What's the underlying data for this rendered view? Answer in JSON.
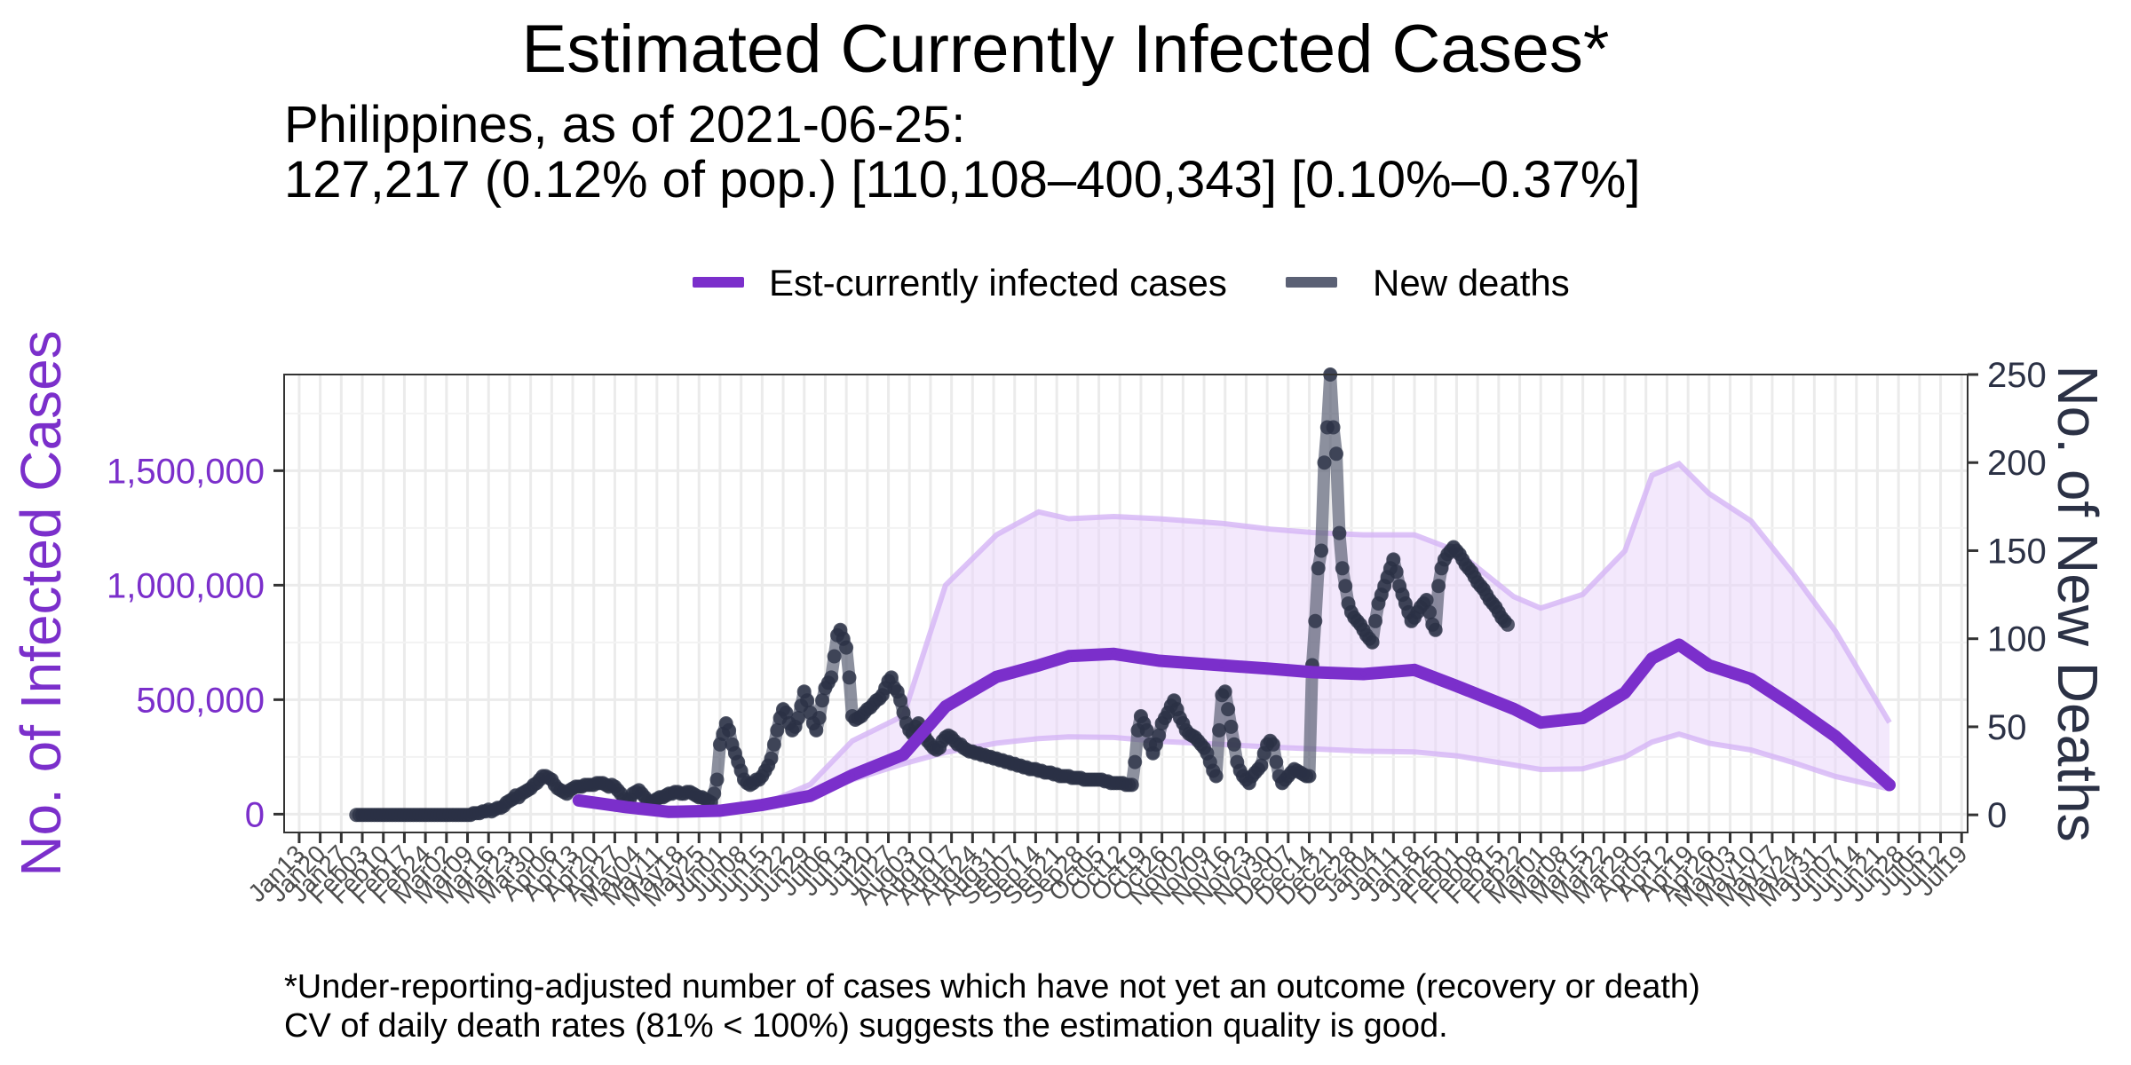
{
  "chart_data": {
    "type": "line",
    "title": "Estimated Currently Infected Cases*",
    "subtitle": [
      "Philippines, as of 2021-06-25:",
      "127,217 (0.12% of pop.)  [110,108–400,343]  [0.10%–0.37%]"
    ],
    "caption": [
      "*Under-reporting-adjusted number of cases which have not yet an outcome (recovery or death)",
      "CV of daily death rates (81% < 100%) suggests the estimation quality is good."
    ],
    "ylabel": "No. of Infected Cases",
    "y2label": "No. of New Deaths",
    "ylim": [
      -80000,
      1920000
    ],
    "y2lim": [
      -10,
      250
    ],
    "yticks": [
      0,
      500000,
      1000000,
      1500000
    ],
    "ytick_labels": [
      "0",
      "500,000",
      "1,000,000",
      "1,500,000"
    ],
    "y2ticks": [
      0,
      50,
      100,
      150,
      200,
      250
    ],
    "y2tick_labels": [
      "0",
      "50",
      "100",
      "150",
      "200",
      "250"
    ],
    "xlim": [
      "2020-01-08",
      "2021-07-21"
    ],
    "xtick_labels": [
      "Jan13",
      "Jan20",
      "Jan27",
      "Feb03",
      "Feb10",
      "Feb17",
      "Feb24",
      "Mar02",
      "Mar09",
      "Mar16",
      "Mar23",
      "Mar30",
      "Apr06",
      "Apr13",
      "Apr20",
      "Apr27",
      "May04",
      "May11",
      "May18",
      "May25",
      "Jun01",
      "Jun08",
      "Jun15",
      "Jun22",
      "Jun29",
      "Jul06",
      "Jul13",
      "Jul20",
      "Jul27",
      "Aug03",
      "Aug10",
      "Aug17",
      "Aug24",
      "Aug31",
      "Sep07",
      "Sep14",
      "Sep21",
      "Sep28",
      "Oct05",
      "Oct12",
      "Oct19",
      "Oct26",
      "Nov02",
      "Nov09",
      "Nov16",
      "Nov23",
      "Nov30",
      "Dec07",
      "Dec14",
      "Dec21",
      "Dec28",
      "Jan04",
      "Jan11",
      "Jan18",
      "Jan25",
      "Feb01",
      "Feb08",
      "Feb15",
      "Feb22",
      "Mar01",
      "Mar08",
      "Mar15",
      "Mar22",
      "Mar29",
      "Apr05",
      "Apr12",
      "Apr19",
      "Apr26",
      "May03",
      "May10",
      "May17",
      "May24",
      "May31",
      "Jun07",
      "Jun14",
      "Jun21",
      "Jun28",
      "Jul05",
      "Jul12",
      "Jul19"
    ],
    "legend_position": "top",
    "grid": true,
    "colors": {
      "infected": "#7B2FCB",
      "band": "#E9D5F9",
      "band_edge": "#D4B4F5",
      "deaths": "#5B6175",
      "deaths_points": "#2B3145",
      "axis_left": "#7B2FCB",
      "axis_right": "#2B3145"
    },
    "series": [
      {
        "name": "Est-currently infected cases",
        "axis": "left",
        "x": [
          "2020-04-15",
          "2020-05-01",
          "2020-05-15",
          "2020-06-01",
          "2020-06-15",
          "2020-07-01",
          "2020-07-15",
          "2020-08-01",
          "2020-08-15",
          "2020-09-01",
          "2020-09-15",
          "2020-09-25",
          "2020-10-10",
          "2020-10-25",
          "2020-11-15",
          "2020-12-01",
          "2020-12-15",
          "2021-01-01",
          "2021-01-18",
          "2021-02-01",
          "2021-02-20",
          "2021-03-01",
          "2021-03-15",
          "2021-03-29",
          "2021-04-07",
          "2021-04-16",
          "2021-04-26",
          "2021-05-10",
          "2021-05-24",
          "2021-06-07",
          "2021-06-25"
        ],
        "y": [
          60000,
          30000,
          10000,
          15000,
          40000,
          80000,
          170000,
          260000,
          470000,
          600000,
          650000,
          690000,
          700000,
          670000,
          650000,
          635000,
          620000,
          612000,
          630000,
          560000,
          460000,
          400000,
          420000,
          530000,
          680000,
          740000,
          650000,
          590000,
          470000,
          340000,
          127217
        ],
        "lower": [
          60000,
          30000,
          10000,
          15000,
          40000,
          80000,
          150000,
          220000,
          270000,
          310000,
          330000,
          338000,
          335000,
          318000,
          305000,
          293000,
          285000,
          275000,
          272000,
          255000,
          215000,
          195000,
          198000,
          250000,
          315000,
          350000,
          310000,
          280000,
          225000,
          165000,
          110108
        ],
        "upper": [
          60000,
          30000,
          10000,
          15000,
          40000,
          130000,
          320000,
          430000,
          1000000,
          1220000,
          1320000,
          1290000,
          1300000,
          1290000,
          1270000,
          1245000,
          1230000,
          1220000,
          1220000,
          1150000,
          950000,
          900000,
          960000,
          1150000,
          1480000,
          1530000,
          1400000,
          1280000,
          1050000,
          800000,
          400343
        ]
      },
      {
        "name": "New deaths",
        "axis": "right",
        "x_start": "2020-02-01",
        "values": [
          0,
          0,
          0,
          0,
          0,
          0,
          0,
          0,
          0,
          0,
          0,
          0,
          0,
          0,
          0,
          0,
          0,
          0,
          0,
          0,
          0,
          0,
          0,
          0,
          0,
          0,
          0,
          0,
          0,
          0,
          0,
          0,
          0,
          0,
          0,
          0,
          0,
          0,
          0,
          1,
          1,
          1,
          2,
          2,
          3,
          2,
          3,
          4,
          4,
          5,
          7,
          8,
          9,
          11,
          10,
          12,
          13,
          14,
          15,
          17,
          18,
          20,
          22,
          22,
          21,
          20,
          17,
          15,
          14,
          13,
          12,
          14,
          15,
          16,
          16,
          16,
          17,
          17,
          17,
          17,
          18,
          18,
          18,
          17,
          16,
          17,
          16,
          14,
          12,
          9,
          8,
          9,
          12,
          13,
          14,
          12,
          10,
          8,
          7,
          8,
          9,
          10,
          10,
          11,
          12,
          12,
          13,
          13,
          12,
          12,
          13,
          13,
          12,
          11,
          10,
          10,
          9,
          8,
          7,
          12,
          20,
          40,
          46,
          52,
          48,
          40,
          35,
          30,
          25,
          20,
          18,
          17,
          18,
          20,
          20,
          22,
          25,
          28,
          32,
          40,
          48,
          55,
          60,
          58,
          52,
          48,
          50,
          55,
          62,
          70,
          65,
          58,
          52,
          48,
          55,
          65,
          72,
          75,
          78,
          90,
          102,
          105,
          100,
          95,
          78,
          56,
          54,
          55,
          56,
          58,
          60,
          61,
          63,
          65,
          66,
          68,
          72,
          76,
          78,
          72,
          70,
          65,
          58,
          52,
          48,
          46,
          50,
          52,
          48,
          45,
          42,
          40,
          38,
          37,
          38,
          42,
          44,
          45,
          44,
          42,
          40,
          40,
          38,
          37,
          36,
          36,
          35,
          35,
          34,
          34,
          33,
          33,
          32,
          32,
          31,
          31,
          30,
          30,
          29,
          29,
          28,
          28,
          27,
          27,
          26,
          26,
          26,
          25,
          25,
          24,
          24,
          24,
          23,
          23,
          22,
          22,
          22,
          22,
          21,
          21,
          21,
          21,
          20,
          20,
          20,
          20,
          20,
          20,
          20,
          19,
          19,
          18,
          18,
          18,
          18,
          18,
          17,
          17,
          17,
          30,
          48,
          56,
          52,
          48,
          40,
          35,
          40,
          45,
          52,
          55,
          58,
          62,
          65,
          60,
          55,
          52,
          48,
          46,
          45,
          44,
          42,
          40,
          38,
          35,
          30,
          25,
          22,
          48,
          68,
          70,
          60,
          50,
          40,
          30,
          25,
          22,
          20,
          18,
          22,
          24,
          26,
          28,
          35,
          40,
          42,
          40,
          30,
          22,
          18,
          20,
          22,
          24,
          26,
          25,
          24,
          23,
          22,
          22,
          85,
          110,
          140,
          150,
          200,
          220,
          250,
          220,
          205,
          160,
          140,
          130,
          120,
          115,
          112,
          110,
          108,
          105,
          102,
          100,
          98,
          110,
          120,
          125,
          130,
          135,
          140,
          145,
          138,
          130,
          125,
          120,
          115,
          110,
          112,
          115,
          118,
          120,
          122,
          115,
          108,
          105,
          130,
          140,
          145,
          148,
          150,
          152,
          150,
          148,
          145,
          142,
          140,
          138,
          135,
          132,
          130,
          128,
          125,
          122,
          120,
          118,
          115,
          112,
          110,
          108
        ]
      }
    ]
  }
}
